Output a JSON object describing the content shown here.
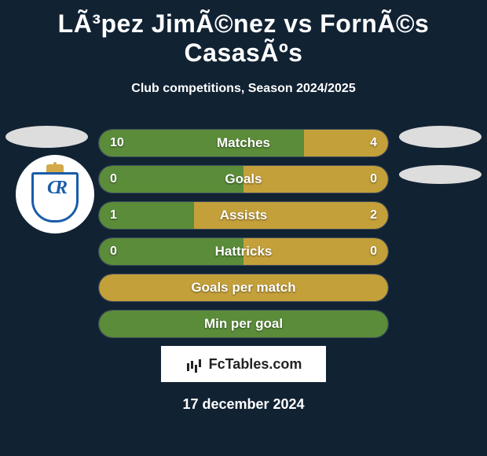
{
  "title": "LÃ³pez JimÃ©nez vs FornÃ©s CasasÃºs",
  "subtitle": "Club competitions, Season 2024/2025",
  "date": "17 december 2024",
  "logo_text": "FcTables.com",
  "background_color": "#123",
  "colors": {
    "left_bar": "#5a8c3a",
    "right_bar": "#c4a03a",
    "full_bar_green": "#5a8c3a",
    "full_bar_yellow": "#c4a03a"
  },
  "stats": [
    {
      "label": "Matches",
      "left_value": "10",
      "right_value": "4",
      "left_width_pct": 71,
      "right_width_pct": 29,
      "left_color": "#5a8c3a",
      "right_color": "#c4a03a"
    },
    {
      "label": "Goals",
      "left_value": "0",
      "right_value": "0",
      "left_width_pct": 50,
      "right_width_pct": 50,
      "left_color": "#5a8c3a",
      "right_color": "#c4a03a"
    },
    {
      "label": "Assists",
      "left_value": "1",
      "right_value": "2",
      "left_width_pct": 33,
      "right_width_pct": 67,
      "left_color": "#5a8c3a",
      "right_color": "#c4a03a"
    },
    {
      "label": "Hattricks",
      "left_value": "0",
      "right_value": "0",
      "left_width_pct": 50,
      "right_width_pct": 50,
      "left_color": "#5a8c3a",
      "right_color": "#c4a03a"
    },
    {
      "label": "Goals per match",
      "left_value": "",
      "right_value": "",
      "full": true,
      "full_color": "#c4a03a"
    },
    {
      "label": "Min per goal",
      "left_value": "",
      "right_value": "",
      "full": true,
      "full_color": "#5a8c3a"
    }
  ],
  "shield_letters": "CR"
}
